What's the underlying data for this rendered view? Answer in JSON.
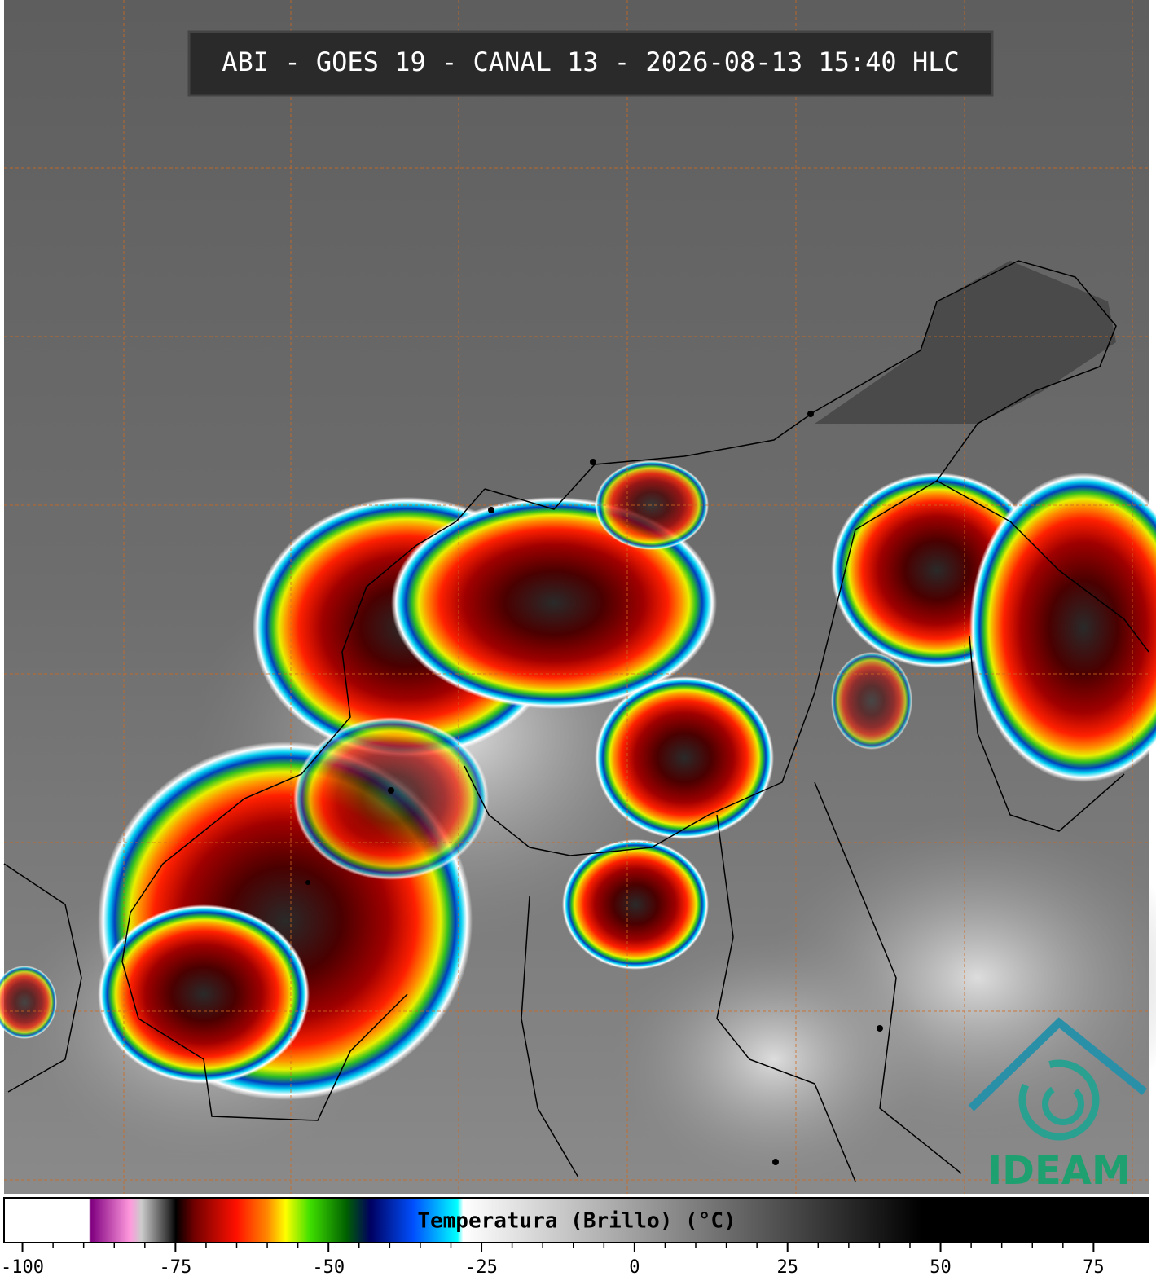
{
  "title": "ABI - GOES 19 - CANAL 13 - 2026-08-13 15:40 HLC",
  "colorbar": {
    "label": "Temperatura (Brillo) (°C)",
    "range": [
      -103,
      84
    ],
    "ticks": [
      -100,
      -75,
      -50,
      -25,
      0,
      25,
      50,
      75
    ]
  },
  "logo": "IDEAM"
}
